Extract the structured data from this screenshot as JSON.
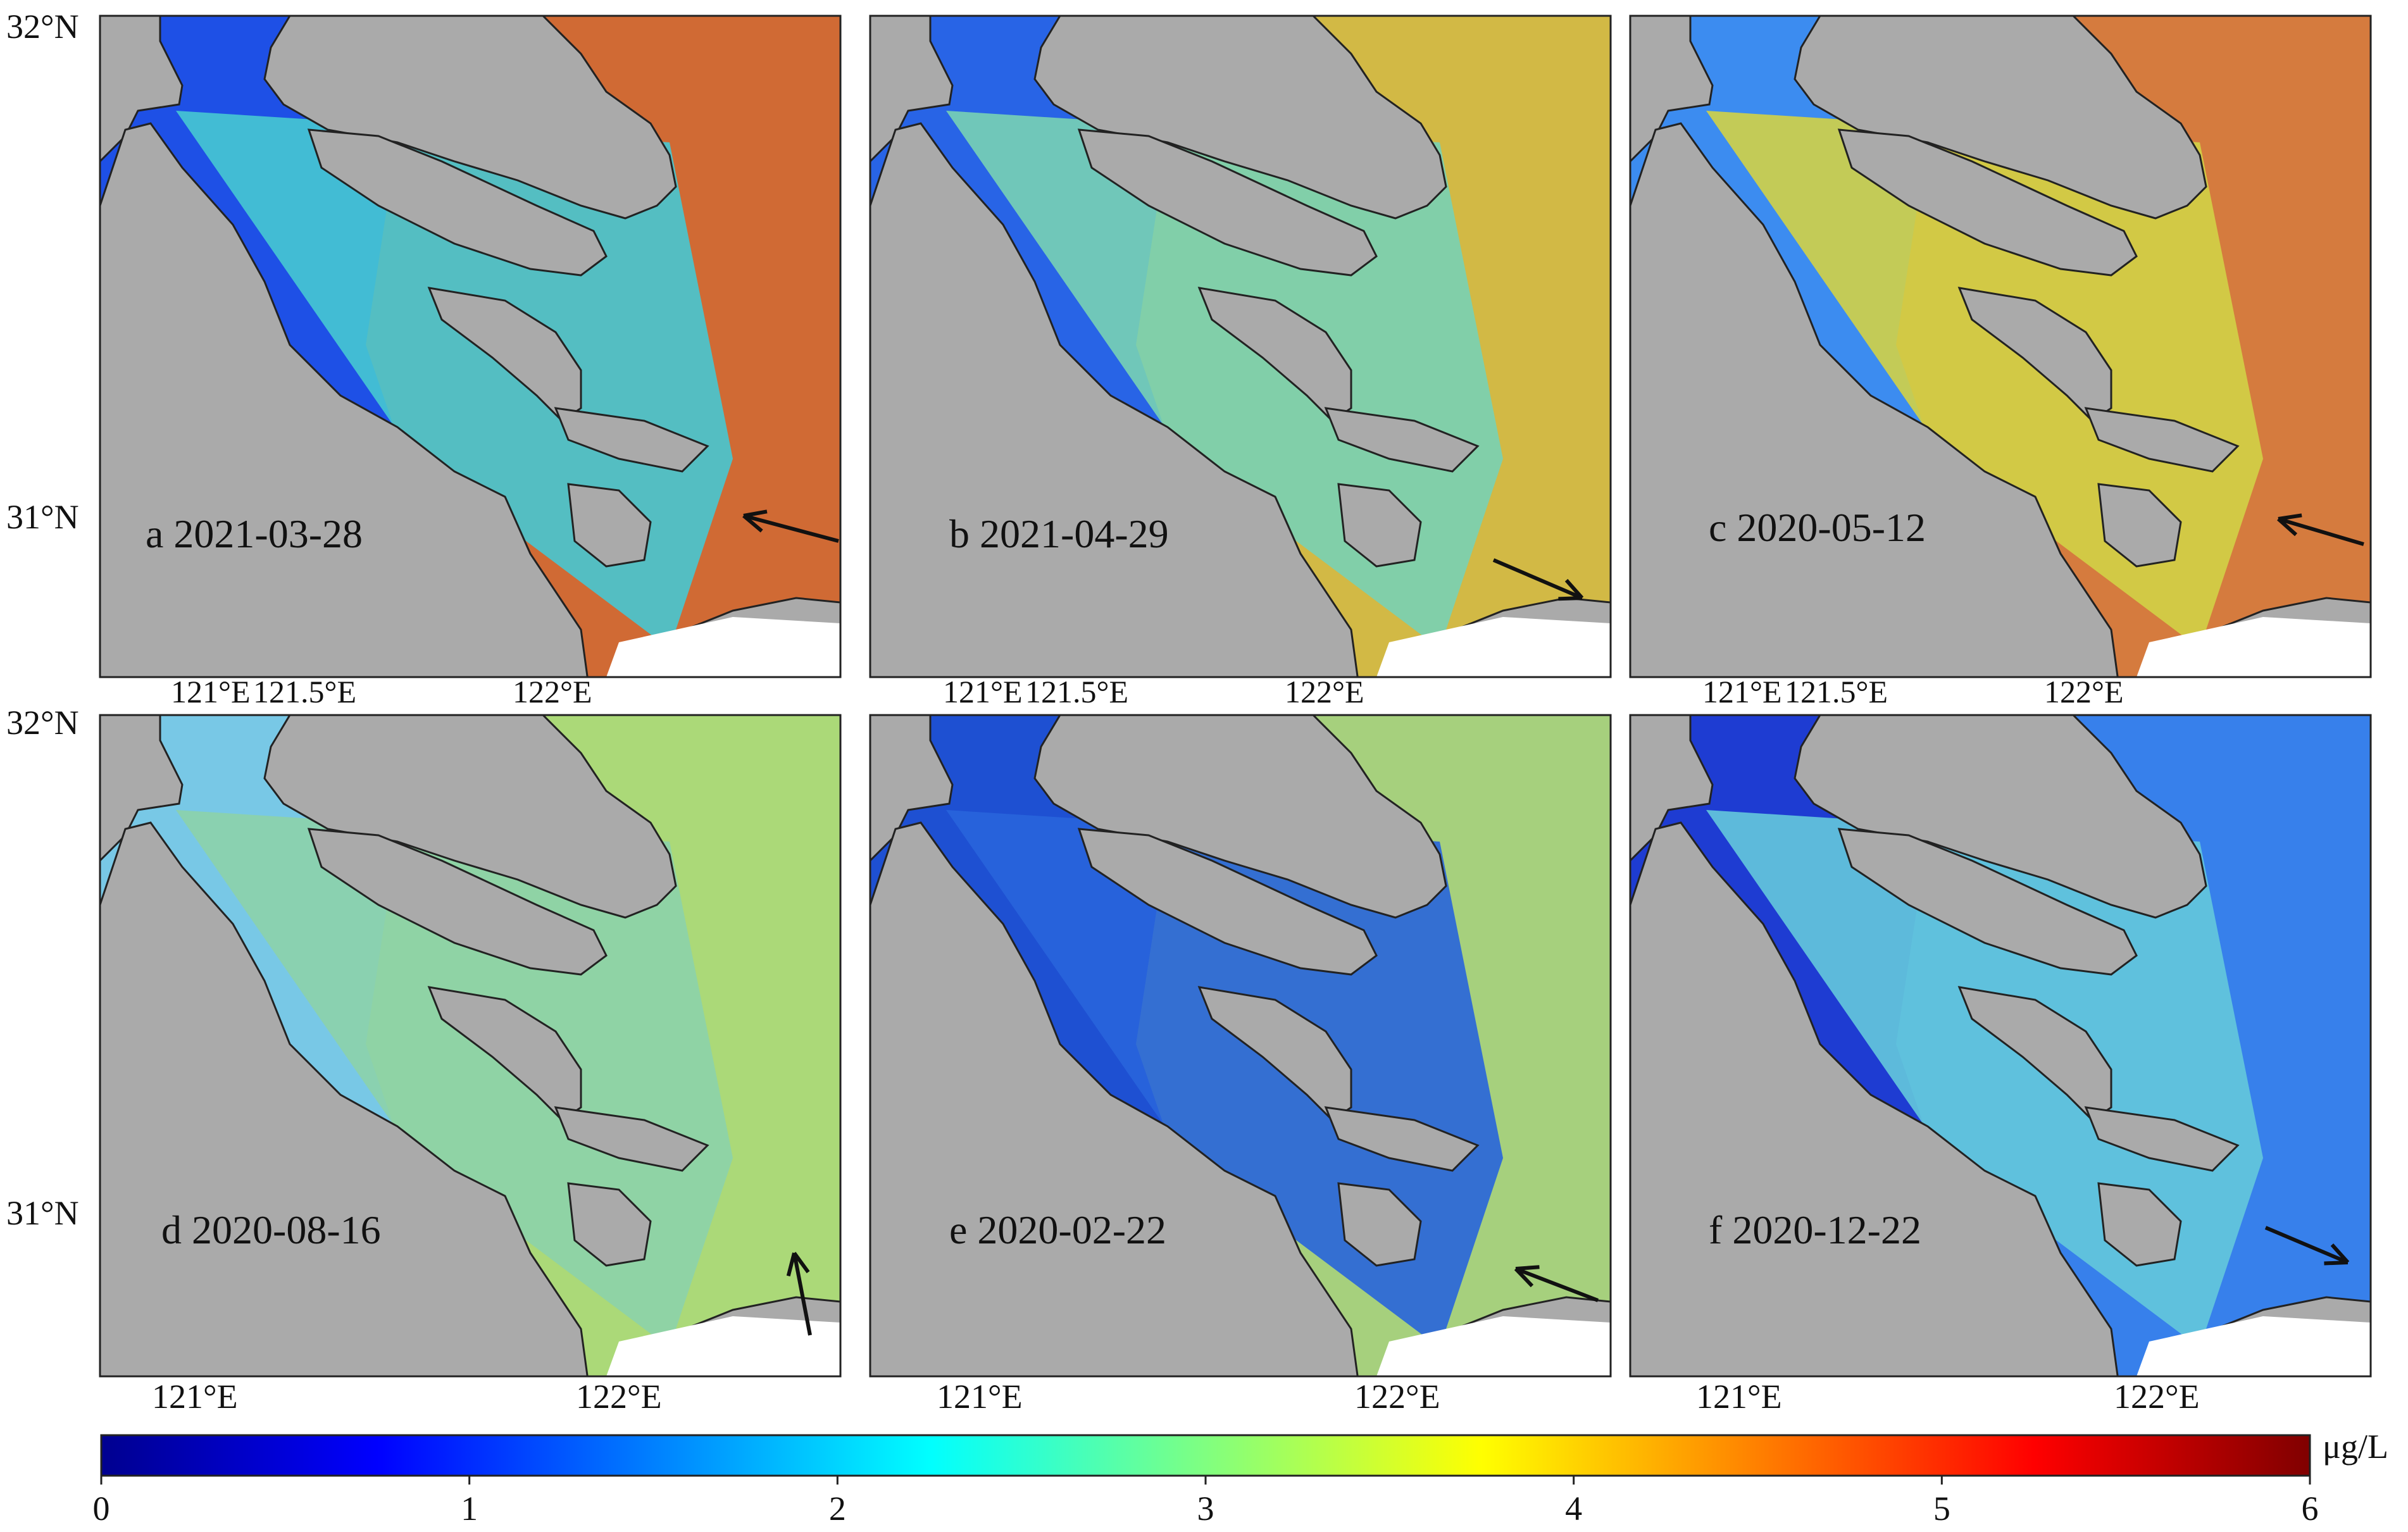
{
  "panels": [
    {
      "id": "a",
      "label": "a 2021-03-28",
      "arrow": "pointing west-northwest, toward the estuary mouth"
    },
    {
      "id": "b",
      "label": "b 2021-04-29",
      "arrow": "pointing east-southeast, away from the estuary"
    },
    {
      "id": "c",
      "label": "c 2020-05-12",
      "arrow": "pointing west-northwest, toward the estuary mouth"
    },
    {
      "id": "d",
      "label": "d 2020-08-16",
      "arrow": "pointing north"
    },
    {
      "id": "e",
      "label": "e 2020-02-22",
      "arrow": "pointing west-northwest, toward the estuary mouth"
    },
    {
      "id": "f",
      "label": "f 2020-12-22",
      "arrow": "pointing east-southeast, away from the estuary"
    }
  ],
  "lat_labels": {
    "top": "32°N",
    "bottom": "31°N"
  },
  "lon_labels_top_row": [
    "121°E",
    "121.5°E",
    "122°E"
  ],
  "lon_labels_bottom_row": [
    "121°E",
    "122°E"
  ],
  "colorbar": {
    "unit": "μg/L",
    "ticks": [
      "0",
      "1",
      "2",
      "3",
      "4",
      "5",
      "6"
    ],
    "colors": [
      "#00008f",
      "#0000ff",
      "#0080ff",
      "#00ffff",
      "#80ff80",
      "#ffff00",
      "#ff8000",
      "#ff0000",
      "#800000"
    ]
  },
  "colors": {
    "land": "#aaaaaa",
    "no_data": "#ffffff",
    "low": "#1e50e6",
    "mid": "#64d2c8",
    "high": "#f56e0f"
  },
  "panel_scenes": {
    "a": {
      "river": "#46c8d2",
      "offshore": "#f06e14",
      "outer": "#1e50e6"
    },
    "b": {
      "river": "#78d2b4",
      "offshore": "#f0c828",
      "outer": "#2864e6"
    },
    "c": {
      "river": "#d2d246",
      "offshore": "#f0781e",
      "outer": "#3c8cf0"
    },
    "d": {
      "river": "#8cd2aa",
      "offshore": "#b4dc64",
      "outer": "#78c8e6"
    },
    "e": {
      "river": "#2864dc",
      "offshore": "#bee66e",
      "outer": "#1e50d2"
    },
    "f": {
      "river": "#64c8dc",
      "offshore": "#3c8cf0",
      "outer": "#1e3cd2"
    }
  }
}
